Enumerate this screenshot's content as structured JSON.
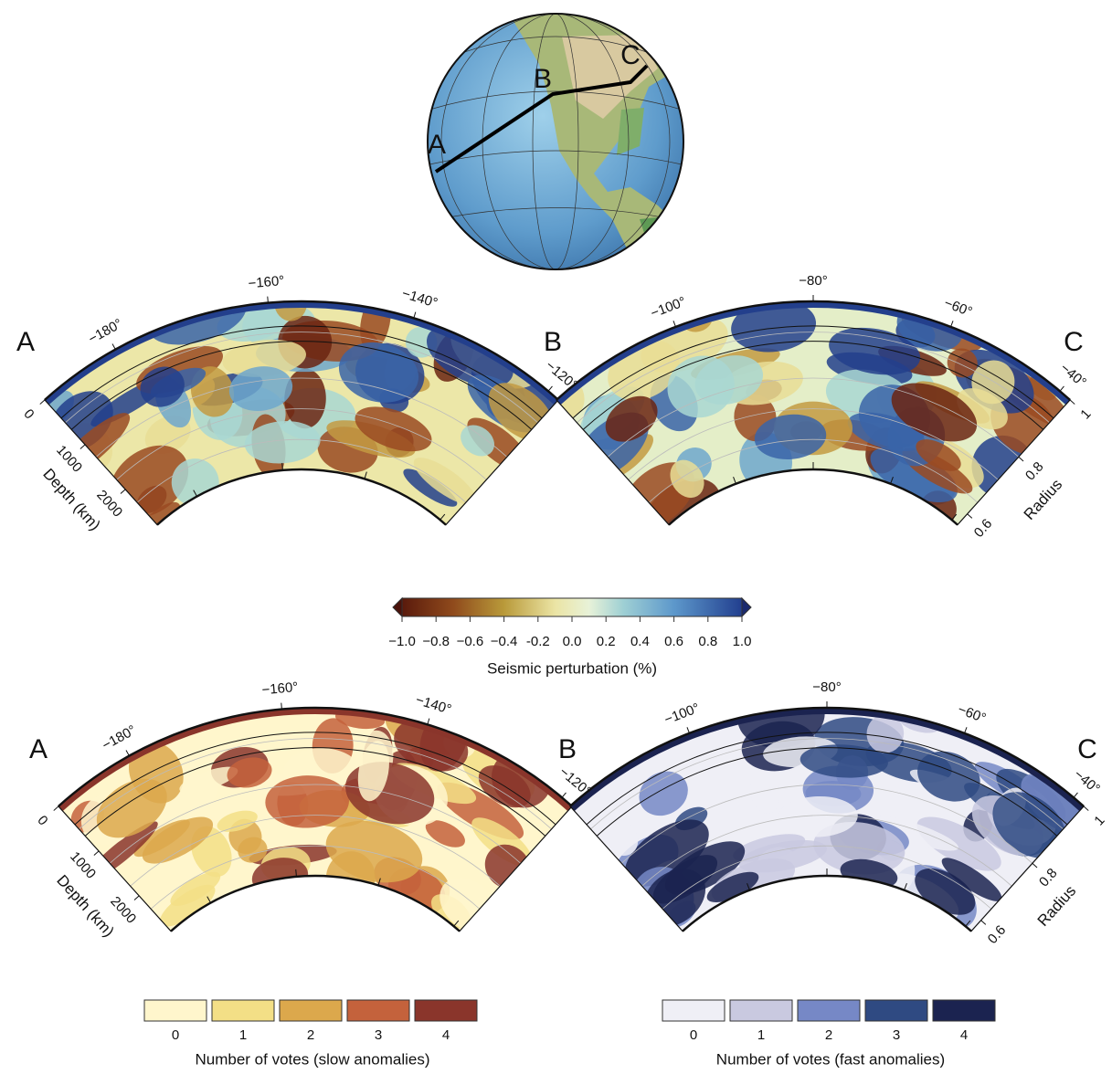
{
  "globe": {
    "labels": {
      "a": "A",
      "b": "B",
      "c": "C"
    }
  },
  "top_section": {
    "left": {
      "start_label": "A",
      "end_label": "B",
      "longitude_ticks": [
        "−180°",
        "−160°",
        "−140°",
        "−120°"
      ],
      "depth_axis_label": "Depth (km)",
      "depth_ticks": [
        "0",
        "1000",
        "2000"
      ]
    },
    "right": {
      "end_label": "C",
      "longitude_ticks": [
        "−100°",
        "−80°",
        "−60°",
        "−40°"
      ],
      "radius_axis_label": "Radius",
      "radius_ticks": [
        "1",
        "0.8",
        "0.6"
      ]
    }
  },
  "colorbar": {
    "ticks": [
      "−1.0",
      "−0.8",
      "−0.6",
      "−0.4",
      "-0.2",
      "0.0",
      "0.2",
      "0.4",
      "0.6",
      "0.8",
      "1.0"
    ],
    "label": "Seismic perturbation (%)"
  },
  "bottom_section": {
    "left": {
      "start_label": "A",
      "end_label": "B",
      "longitude_ticks": [
        "−180°",
        "−160°",
        "−140°",
        "−120°"
      ],
      "depth_axis_label": "Depth (km)",
      "depth_ticks": [
        "0",
        "1000",
        "2000"
      ]
    },
    "right": {
      "end_label": "C",
      "longitude_ticks": [
        "−100°",
        "−80°",
        "−60°",
        "−40°"
      ],
      "radius_axis_label": "Radius",
      "radius_ticks": [
        "1",
        "0.8",
        "0.6"
      ]
    }
  },
  "slow_votes": {
    "ticks": [
      "0",
      "1",
      "2",
      "3",
      "4"
    ],
    "colors": [
      "#fff6cc",
      "#f3df86",
      "#dca84c",
      "#c4623c",
      "#8a352b"
    ],
    "label": "Number of votes (slow anomalies)"
  },
  "fast_votes": {
    "ticks": [
      "0",
      "1",
      "2",
      "3",
      "4"
    ],
    "colors": [
      "#efeff6",
      "#c9c9e0",
      "#7688c6",
      "#2f4a82",
      "#1b2350"
    ],
    "label": "Number of votes (fast anomalies)"
  }
}
